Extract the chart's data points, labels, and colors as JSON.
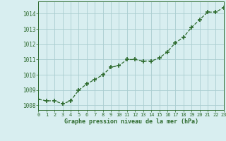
{
  "x": [
    0,
    1,
    2,
    3,
    4,
    5,
    6,
    7,
    8,
    9,
    10,
    11,
    12,
    13,
    14,
    15,
    16,
    17,
    18,
    19,
    20,
    21,
    22,
    23
  ],
  "y": [
    1008.4,
    1008.3,
    1008.3,
    1008.1,
    1008.3,
    1009.0,
    1009.4,
    1009.7,
    1010.0,
    1010.5,
    1010.6,
    1011.0,
    1011.0,
    1010.9,
    1010.9,
    1011.1,
    1011.5,
    1012.1,
    1012.45,
    1013.1,
    1013.6,
    1014.1,
    1014.1,
    1014.4
  ],
  "line_color": "#2d6a2d",
  "marker": "+",
  "marker_size": 4,
  "bg_color": "#d8eef0",
  "grid_color": "#aacdd0",
  "xlabel": "Graphe pression niveau de la mer (hPa)",
  "xlabel_color": "#2d6a2d",
  "ylabel_ticks": [
    1008,
    1009,
    1010,
    1011,
    1012,
    1013,
    1014
  ],
  "xlim": [
    0,
    23
  ],
  "ylim": [
    1007.7,
    1014.8
  ],
  "tick_color": "#2d6a2d",
  "axis_color": "#2d6a2d",
  "xtick_labels": [
    "0",
    "1",
    "2",
    "3",
    "4",
    "5",
    "6",
    "7",
    "8",
    "9",
    "10",
    "11",
    "12",
    "13",
    "14",
    "15",
    "16",
    "17",
    "18",
    "19",
    "20",
    "21",
    "22",
    "23"
  ]
}
